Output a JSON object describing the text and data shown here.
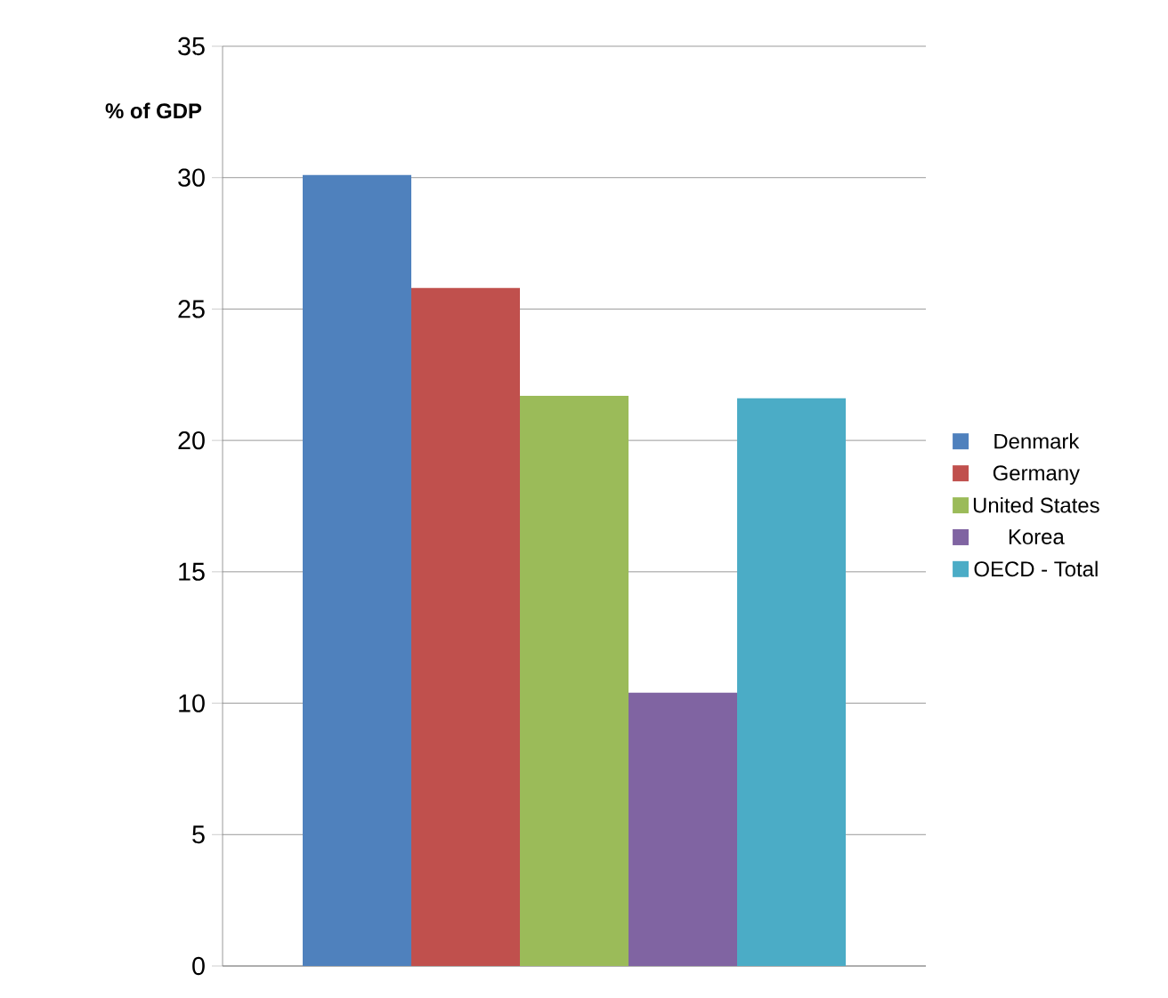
{
  "chart_data": {
    "type": "bar",
    "ylabel": "% of GDP",
    "categories": [
      null
    ],
    "series": [
      {
        "name": "Denmark",
        "color": "#4f81bd",
        "values": [
          30.1
        ]
      },
      {
        "name": "Germany",
        "color": "#c0504d",
        "values": [
          25.8
        ]
      },
      {
        "name": "United States",
        "color": "#9bbb59",
        "values": [
          21.7
        ]
      },
      {
        "name": "Korea",
        "color": "#8064a2",
        "values": [
          10.4
        ]
      },
      {
        "name": "OECD - Total",
        "color": "#4bacc6",
        "values": [
          21.6
        ]
      }
    ],
    "ylim": [
      0,
      35
    ],
    "yticks": [
      0,
      5,
      10,
      15,
      20,
      25,
      30,
      35
    ],
    "grid": "y",
    "legend": "right"
  }
}
